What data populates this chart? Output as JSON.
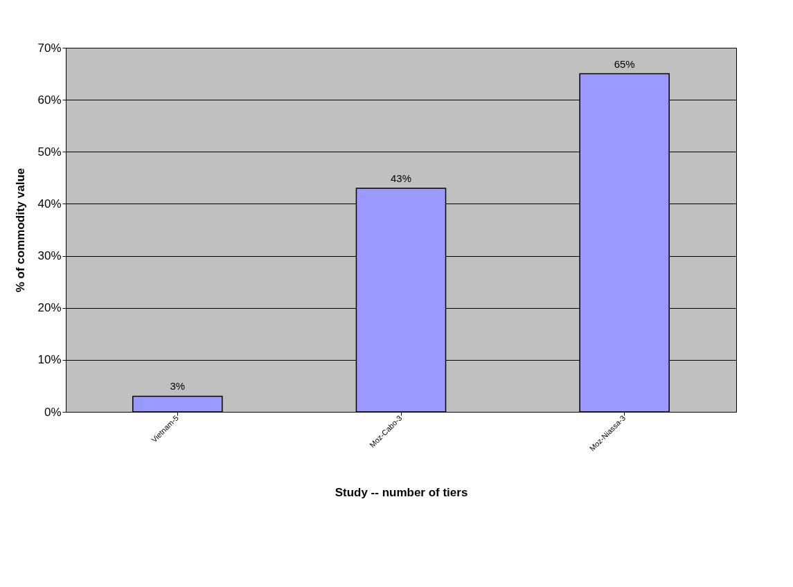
{
  "chart_data": {
    "type": "bar",
    "xlabel": "Study -- number of tiers",
    "ylabel": "% of commodity value",
    "categories": [
      "Vietnam-5",
      "Moz-Cabo-3",
      "Moz-Niassa-3"
    ],
    "values": [
      3,
      43,
      65
    ],
    "color": "#9999ff",
    "value_labels": [
      "3%",
      "43%",
      "65%"
    ],
    "ylim": [
      0,
      70
    ],
    "yticks": [
      {
        "value": 0,
        "label": "0%"
      },
      {
        "value": 10,
        "label": "10%"
      },
      {
        "value": 20,
        "label": "20%"
      },
      {
        "value": 30,
        "label": "30%"
      },
      {
        "value": 40,
        "label": "40%"
      },
      {
        "value": 50,
        "label": "50%"
      },
      {
        "value": 60,
        "label": "60%"
      },
      {
        "value": 70,
        "label": "70%"
      }
    ],
    "grid": "y"
  }
}
